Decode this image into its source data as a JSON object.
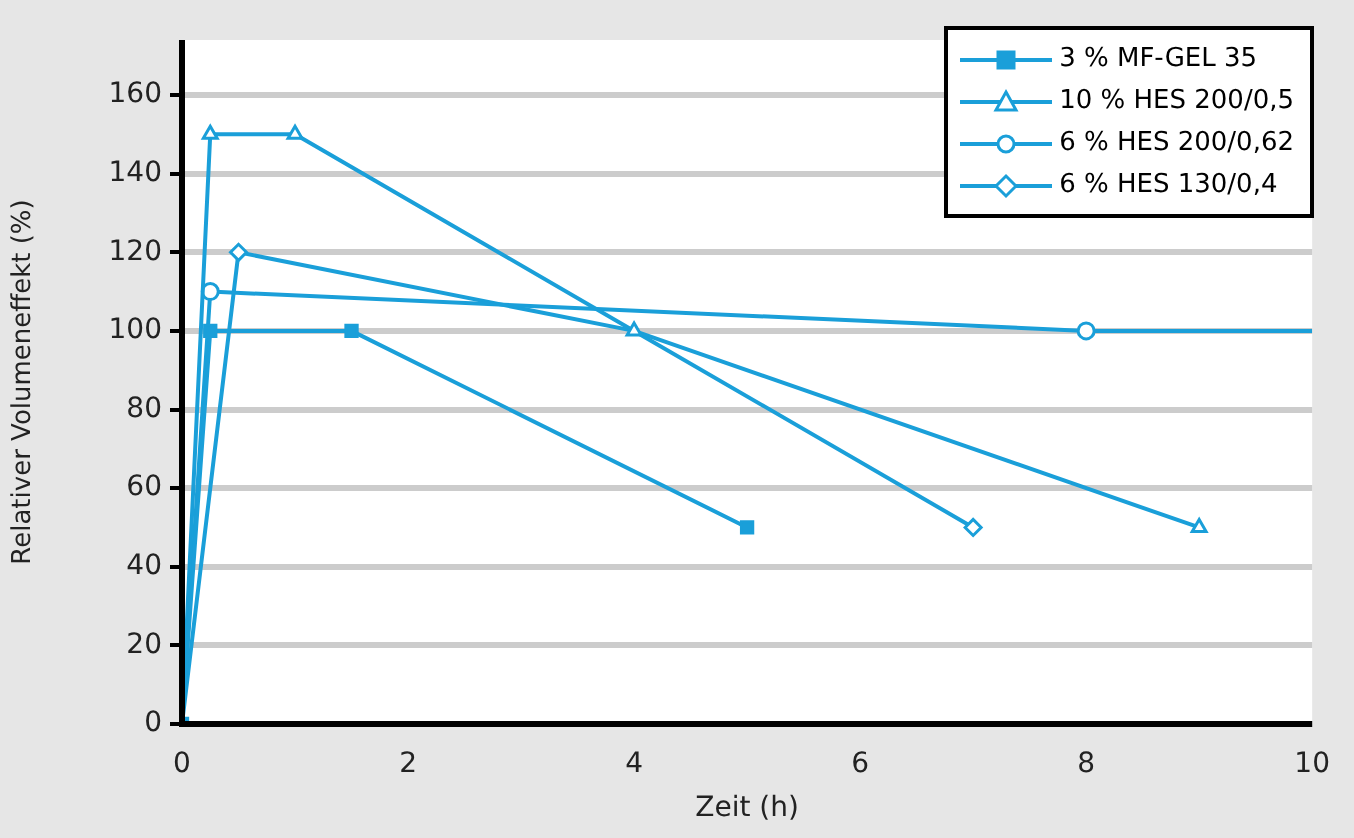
{
  "chart_data": {
    "type": "line",
    "xlabel": "Zeit (h)",
    "ylabel": "Relativer Volumeneffekt (%)",
    "xlim": [
      0,
      10
    ],
    "xticks": [
      0,
      2,
      4,
      6,
      8,
      10
    ],
    "ylim": [
      0,
      174
    ],
    "yticks": [
      0,
      20,
      40,
      60,
      80,
      100,
      120,
      140,
      160
    ],
    "grid": "y",
    "legend": "top right",
    "line_style": "solid",
    "series": [
      {
        "name": "3 % MF-GEL 35",
        "color": "#1a9fd9",
        "marker": "square",
        "x": [
          0,
          0.25,
          1.5,
          5
        ],
        "values": [
          0,
          100,
          100,
          50
        ]
      },
      {
        "name": "10 % HES 200/0,5",
        "color": "#1a9fd9",
        "marker": "triangle",
        "x": [
          0,
          0.25,
          1,
          4,
          9
        ],
        "values": [
          0,
          150,
          150,
          100,
          50
        ]
      },
      {
        "name": "6 % HES 200/0,62",
        "color": "#1a9fd9",
        "marker": "circle",
        "x": [
          0,
          0.25,
          8,
          10
        ],
        "values": [
          0,
          110,
          100,
          100
        ]
      },
      {
        "name": "6 % HES 130/0,4",
        "color": "#1a9fd9",
        "marker": "diamond",
        "x": [
          0,
          0.5,
          4,
          7
        ],
        "values": [
          0,
          120,
          100,
          50
        ]
      }
    ]
  }
}
